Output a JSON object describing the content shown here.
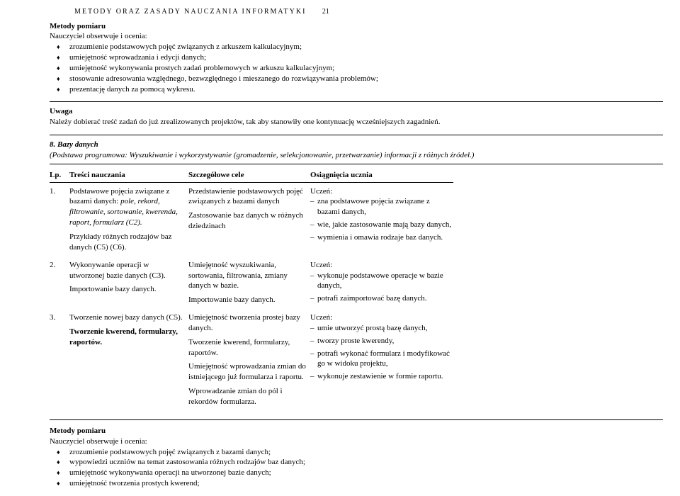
{
  "header": {
    "text": "METODY ORAZ ZASADY NAUCZANIA INFORMATYKI",
    "page": "21"
  },
  "mp1": {
    "title": "Metody pomiaru",
    "intro": "Nauczyciel obserwuje i ocenia:",
    "items": [
      "zrozumienie podstawowych pojęć związanych z arkuszem kalkulacyjnym;",
      "umiejętność wprowadzania i edycji danych;",
      "umiejętność wykonywania prostych zadań problemowych w arkuszu kalkulacyjnym;",
      "stosowanie adresowania względnego, bezwzględnego i mieszanego do rozwiązywania problemów;",
      "prezentację danych za pomocą wykresu."
    ]
  },
  "uwaga": {
    "title": "Uwaga",
    "text": "Należy dobierać treść zadań do już zrealizowanych projektów, tak aby stanowiły one kontynuację wcześniejszych zagadnień."
  },
  "sec8": {
    "num": "8. Bazy danych",
    "sub": "(Podstawa programowa: Wyszukiwanie i wykorzystywanie (gromadzenie, selekcjonowanie, przetwarzanie) informacji z różnych źródeł.)"
  },
  "thead": {
    "lp": "Lp.",
    "tn": "Treści nauczania",
    "sc": "Szczegółowe cele",
    "ou": "Osiągnięcia ucznia"
  },
  "rows": [
    {
      "lp": "1.",
      "tn1a": "Podstawowe pojęcia związane z bazami danych: ",
      "tn1b": "pole, rekord, filtrowanie, sortowanie, kwerenda, raport, formularz (C2).",
      "tn2": "Przykłady różnych rodzajów baz danych (C5) (C6).",
      "sc1": "Przedstawienie podstawowych pojęć związanych z bazami danych",
      "sc2": "Zastosowanie baz danych w różnych dziedzinach",
      "ou_lead": "Uczeń:",
      "ou": [
        "zna podstawowe pojęcia związane z bazami danych,",
        "wie, jakie zastosowanie mają bazy danych,",
        "wymienia i omawia rodzaje baz danych."
      ]
    },
    {
      "lp": "2.",
      "tn1": "Wykonywanie operacji w utworzonej bazie danych (C3).",
      "tn2": "Importowanie bazy danych.",
      "sc1": "Umiejętność wyszukiwania, sortowania, filtrowania, zmiany danych w bazie.",
      "sc2": "Importowanie bazy danych.",
      "ou_lead": "Uczeń:",
      "ou": [
        "wykonuje podstawowe operacje w bazie danych,",
        "potrafi zaimportować bazę danych."
      ]
    },
    {
      "lp": "3.",
      "tn1": "Tworzenie nowej bazy danych (C5).",
      "tn2": "Tworzenie kwerend, formularzy, raportów.",
      "sc1": "Umiejętność tworzenia prostej bazy danych.",
      "sc2": "Tworzenie kwerend, formularzy, raportów.",
      "sc3": "Umiejętność wprowadzania zmian do istniejącego już formularza i raportu.",
      "sc4": "Wprowadzanie zmian do pól i rekordów formularza.",
      "ou_lead": "Uczeń:",
      "ou": [
        "umie utworzyć prostą bazę danych,",
        "tworzy proste kwerendy,",
        "potrafi wykonać formularz i modyfikować go w widoku projektu,",
        "wykonuje zestawienie w formie raportu."
      ]
    }
  ],
  "mp2": {
    "title": "Metody pomiaru",
    "intro": "Nauczyciel obserwuje i ocenia:",
    "items": [
      "zrozumienie podstawowych pojęć związanych z bazami danych;",
      "wypowiedzi uczniów na temat zastosowania różnych rodzajów baz danych;",
      "umiejętność wykonywania operacji na utworzonej bazie danych;",
      "umiejętność tworzenia prostych kwerend;"
    ]
  }
}
